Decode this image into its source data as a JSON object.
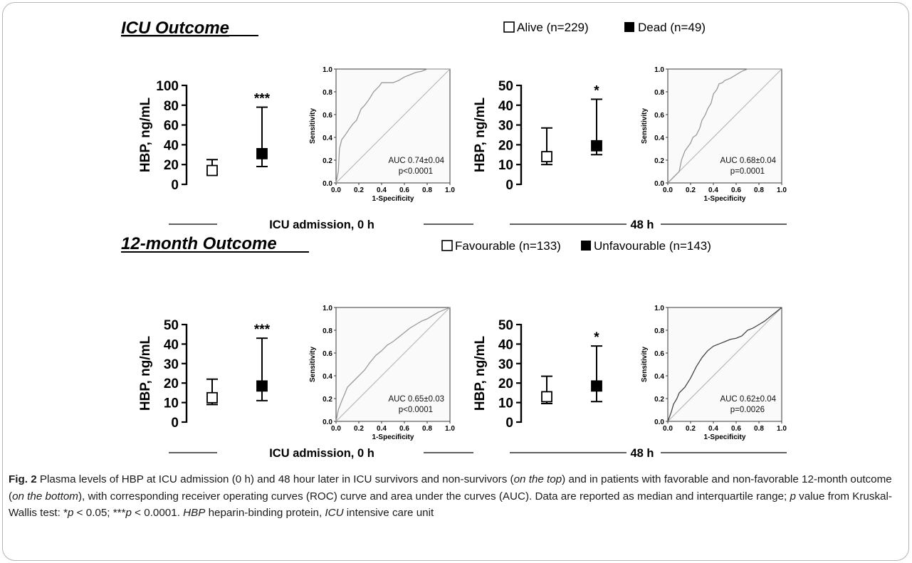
{
  "sections": [
    {
      "title": "ICU Outcome",
      "legend": [
        {
          "label": "Alive (n=229)",
          "fill": "#ffffff"
        },
        {
          "label": "Dead (n=49)",
          "fill": "#000000"
        }
      ]
    },
    {
      "title": "12-month Outcome",
      "legend": [
        {
          "label": "Favourable (n=133)",
          "fill": "#ffffff"
        },
        {
          "label": "Unfavourable (n=143)",
          "fill": "#000000"
        }
      ]
    }
  ],
  "timepoints": [
    "ICU admission, 0 h",
    "48 h",
    "ICU admission, 0 h",
    "48 h"
  ],
  "caption": {
    "fig_label": "Fig. 2",
    "segments": [
      {
        "t": " Plasma levels of HBP at ICU admission (0 h) and 48 hour later in ICU survivors and non-survivors ("
      },
      {
        "t": "on the top",
        "i": true
      },
      {
        "t": ") and in patients with favorable and non-favorable 12-month outcome ("
      },
      {
        "t": "on the bottom",
        "i": true
      },
      {
        "t": "), with corresponding receiver operating curves (ROC) curve and area under the curves (AUC). Data are reported as median and interquartile range; "
      },
      {
        "t": "p",
        "i": true
      },
      {
        "t": " value from Kruskal-Wallis test: *"
      },
      {
        "t": "p",
        "i": true
      },
      {
        "t": " < 0.05; ***"
      },
      {
        "t": "p",
        "i": true
      },
      {
        "t": " < 0.0001. "
      },
      {
        "t": "HBP",
        "i": true
      },
      {
        "t": " heparin-binding protein, "
      },
      {
        "t": "ICU",
        "i": true
      },
      {
        "t": " intensive care unit"
      }
    ]
  },
  "chart_data": [
    {
      "type": "scatter",
      "subtype": "median-iqr",
      "ylabel": "HBP, ng/mL",
      "ylim": [
        0,
        100
      ],
      "yticks": [
        0,
        20,
        40,
        60,
        80,
        100
      ],
      "series": [
        {
          "name": "Alive (n=229)",
          "median": 14,
          "q1": 10,
          "q3": 25,
          "fill": "#ffffff"
        },
        {
          "name": "Dead (n=49)",
          "median": 31,
          "q1": 18,
          "q3": 78,
          "fill": "#000000"
        }
      ],
      "significance": "***"
    },
    {
      "type": "line",
      "xlabel": "1-Specificity",
      "ylabel": "Sensitivity",
      "xlim": [
        0,
        1
      ],
      "ylim": [
        0,
        1
      ],
      "xticks": [
        "0.0",
        "0.2",
        "0.4",
        "0.6",
        "0.8",
        "1.0"
      ],
      "yticks": [
        "0.0",
        "0.2",
        "0.4",
        "0.6",
        "0.8",
        "1.0"
      ],
      "annotation": [
        "AUC 0.74±0.04",
        "p<0.0001"
      ],
      "roc": {
        "x": [
          0,
          0.02,
          0.03,
          0.05,
          0.08,
          0.1,
          0.12,
          0.15,
          0.18,
          0.2,
          0.22,
          0.25,
          0.28,
          0.3,
          0.33,
          0.35,
          0.38,
          0.4,
          0.45,
          0.5,
          0.55,
          0.6,
          0.65,
          0.7,
          0.75,
          0.8,
          1.0
        ],
        "y": [
          0,
          0.1,
          0.3,
          0.38,
          0.42,
          0.45,
          0.48,
          0.52,
          0.55,
          0.6,
          0.65,
          0.68,
          0.72,
          0.75,
          0.8,
          0.82,
          0.85,
          0.88,
          0.88,
          0.88,
          0.9,
          0.93,
          0.95,
          0.97,
          0.98,
          1.0,
          1.0
        ]
      }
    },
    {
      "type": "scatter",
      "subtype": "median-iqr",
      "ylabel": "HBP, ng/mL",
      "ylim": [
        0,
        50
      ],
      "yticks": [
        0,
        10,
        20,
        30,
        40,
        50
      ],
      "series": [
        {
          "name": "Alive (n=229)",
          "median": 14,
          "q1": 10,
          "q3": 28.5,
          "fill": "#ffffff"
        },
        {
          "name": "Dead (n=49)",
          "median": 19.5,
          "q1": 15,
          "q3": 43,
          "fill": "#000000"
        }
      ],
      "significance": "*"
    },
    {
      "type": "line",
      "xlabel": "1-Specificity",
      "ylabel": "Sensitivity",
      "xlim": [
        0,
        1
      ],
      "ylim": [
        0,
        1
      ],
      "xticks": [
        "0.0",
        "0.2",
        "0.4",
        "0.6",
        "0.8",
        "1.0"
      ],
      "yticks": [
        "0.0",
        "0.2",
        "0.4",
        "0.6",
        "0.8",
        "1.0"
      ],
      "annotation": [
        "AUC 0.68±0.04",
        "p=0.0001"
      ],
      "roc": {
        "x": [
          0,
          0.05,
          0.1,
          0.12,
          0.15,
          0.2,
          0.22,
          0.25,
          0.28,
          0.3,
          0.33,
          0.35,
          0.38,
          0.4,
          0.43,
          0.45,
          0.48,
          0.5,
          0.55,
          0.6,
          0.65,
          0.7,
          1.0
        ],
        "y": [
          0,
          0.05,
          0.1,
          0.2,
          0.28,
          0.35,
          0.4,
          0.42,
          0.48,
          0.55,
          0.6,
          0.65,
          0.7,
          0.78,
          0.82,
          0.87,
          0.88,
          0.9,
          0.92,
          0.95,
          0.98,
          1.0,
          1.0
        ]
      }
    },
    {
      "type": "scatter",
      "subtype": "median-iqr",
      "ylabel": "HBP, ng/mL",
      "ylim": [
        0,
        50
      ],
      "yticks": [
        0,
        10,
        20,
        30,
        40,
        50
      ],
      "series": [
        {
          "name": "Favourable (n=133)",
          "median": 12.5,
          "q1": 9,
          "q3": 22,
          "fill": "#ffffff"
        },
        {
          "name": "Unfavourable (n=143)",
          "median": 18.5,
          "q1": 11,
          "q3": 43,
          "fill": "#000000"
        }
      ],
      "significance": "***"
    },
    {
      "type": "line",
      "xlabel": "1-Specificity",
      "ylabel": "Sensitivity",
      "xlim": [
        0,
        1
      ],
      "ylim": [
        0,
        1
      ],
      "xticks": [
        "0.0",
        "0.2",
        "0.4",
        "0.6",
        "0.8",
        "1.0"
      ],
      "yticks": [
        "0.0",
        "0.2",
        "0.4",
        "0.6",
        "0.8",
        "1.0"
      ],
      "annotation": [
        "AUC 0.65±0.03",
        "p<0.0001"
      ],
      "roc": {
        "x": [
          0,
          0.02,
          0.05,
          0.08,
          0.1,
          0.15,
          0.2,
          0.25,
          0.3,
          0.35,
          0.4,
          0.45,
          0.5,
          0.55,
          0.6,
          0.65,
          0.7,
          0.75,
          0.8,
          0.85,
          0.9,
          0.95,
          1.0
        ],
        "y": [
          0,
          0.1,
          0.18,
          0.25,
          0.3,
          0.35,
          0.4,
          0.45,
          0.52,
          0.58,
          0.62,
          0.67,
          0.7,
          0.74,
          0.78,
          0.82,
          0.85,
          0.88,
          0.9,
          0.93,
          0.96,
          0.98,
          1.0
        ]
      }
    },
    {
      "type": "scatter",
      "subtype": "median-iqr",
      "ylabel": "HBP, ng/mL",
      "ylim": [
        0,
        50
      ],
      "yticks": [
        0,
        10,
        20,
        30,
        40,
        50
      ],
      "series": [
        {
          "name": "Favourable (n=133)",
          "median": 13,
          "q1": 9.5,
          "q3": 23.5,
          "fill": "#ffffff"
        },
        {
          "name": "Unfavourable (n=143)",
          "median": 18.5,
          "q1": 10.5,
          "q3": 39,
          "fill": "#000000"
        }
      ],
      "significance": "*"
    },
    {
      "type": "line",
      "xlabel": "1-Specificity",
      "ylabel": "Sensitivity",
      "xlim": [
        0,
        1
      ],
      "ylim": [
        0,
        1
      ],
      "xticks": [
        "0.0",
        "0.2",
        "0.4",
        "0.6",
        "0.8",
        "1.0"
      ],
      "yticks": [
        "0.0",
        "0.2",
        "0.4",
        "0.6",
        "0.8",
        "1.0"
      ],
      "annotation": [
        "AUC 0.62±0.04",
        "p=0.0026"
      ],
      "roc": {
        "x": [
          0,
          0.03,
          0.05,
          0.08,
          0.1,
          0.15,
          0.2,
          0.25,
          0.3,
          0.35,
          0.4,
          0.45,
          0.5,
          0.55,
          0.6,
          0.65,
          0.7,
          0.75,
          0.8,
          0.85,
          0.9,
          0.95,
          1.0
        ],
        "y": [
          0,
          0.08,
          0.15,
          0.2,
          0.25,
          0.3,
          0.38,
          0.48,
          0.56,
          0.62,
          0.66,
          0.68,
          0.7,
          0.72,
          0.73,
          0.75,
          0.8,
          0.82,
          0.85,
          0.88,
          0.92,
          0.96,
          1.0
        ]
      }
    }
  ]
}
